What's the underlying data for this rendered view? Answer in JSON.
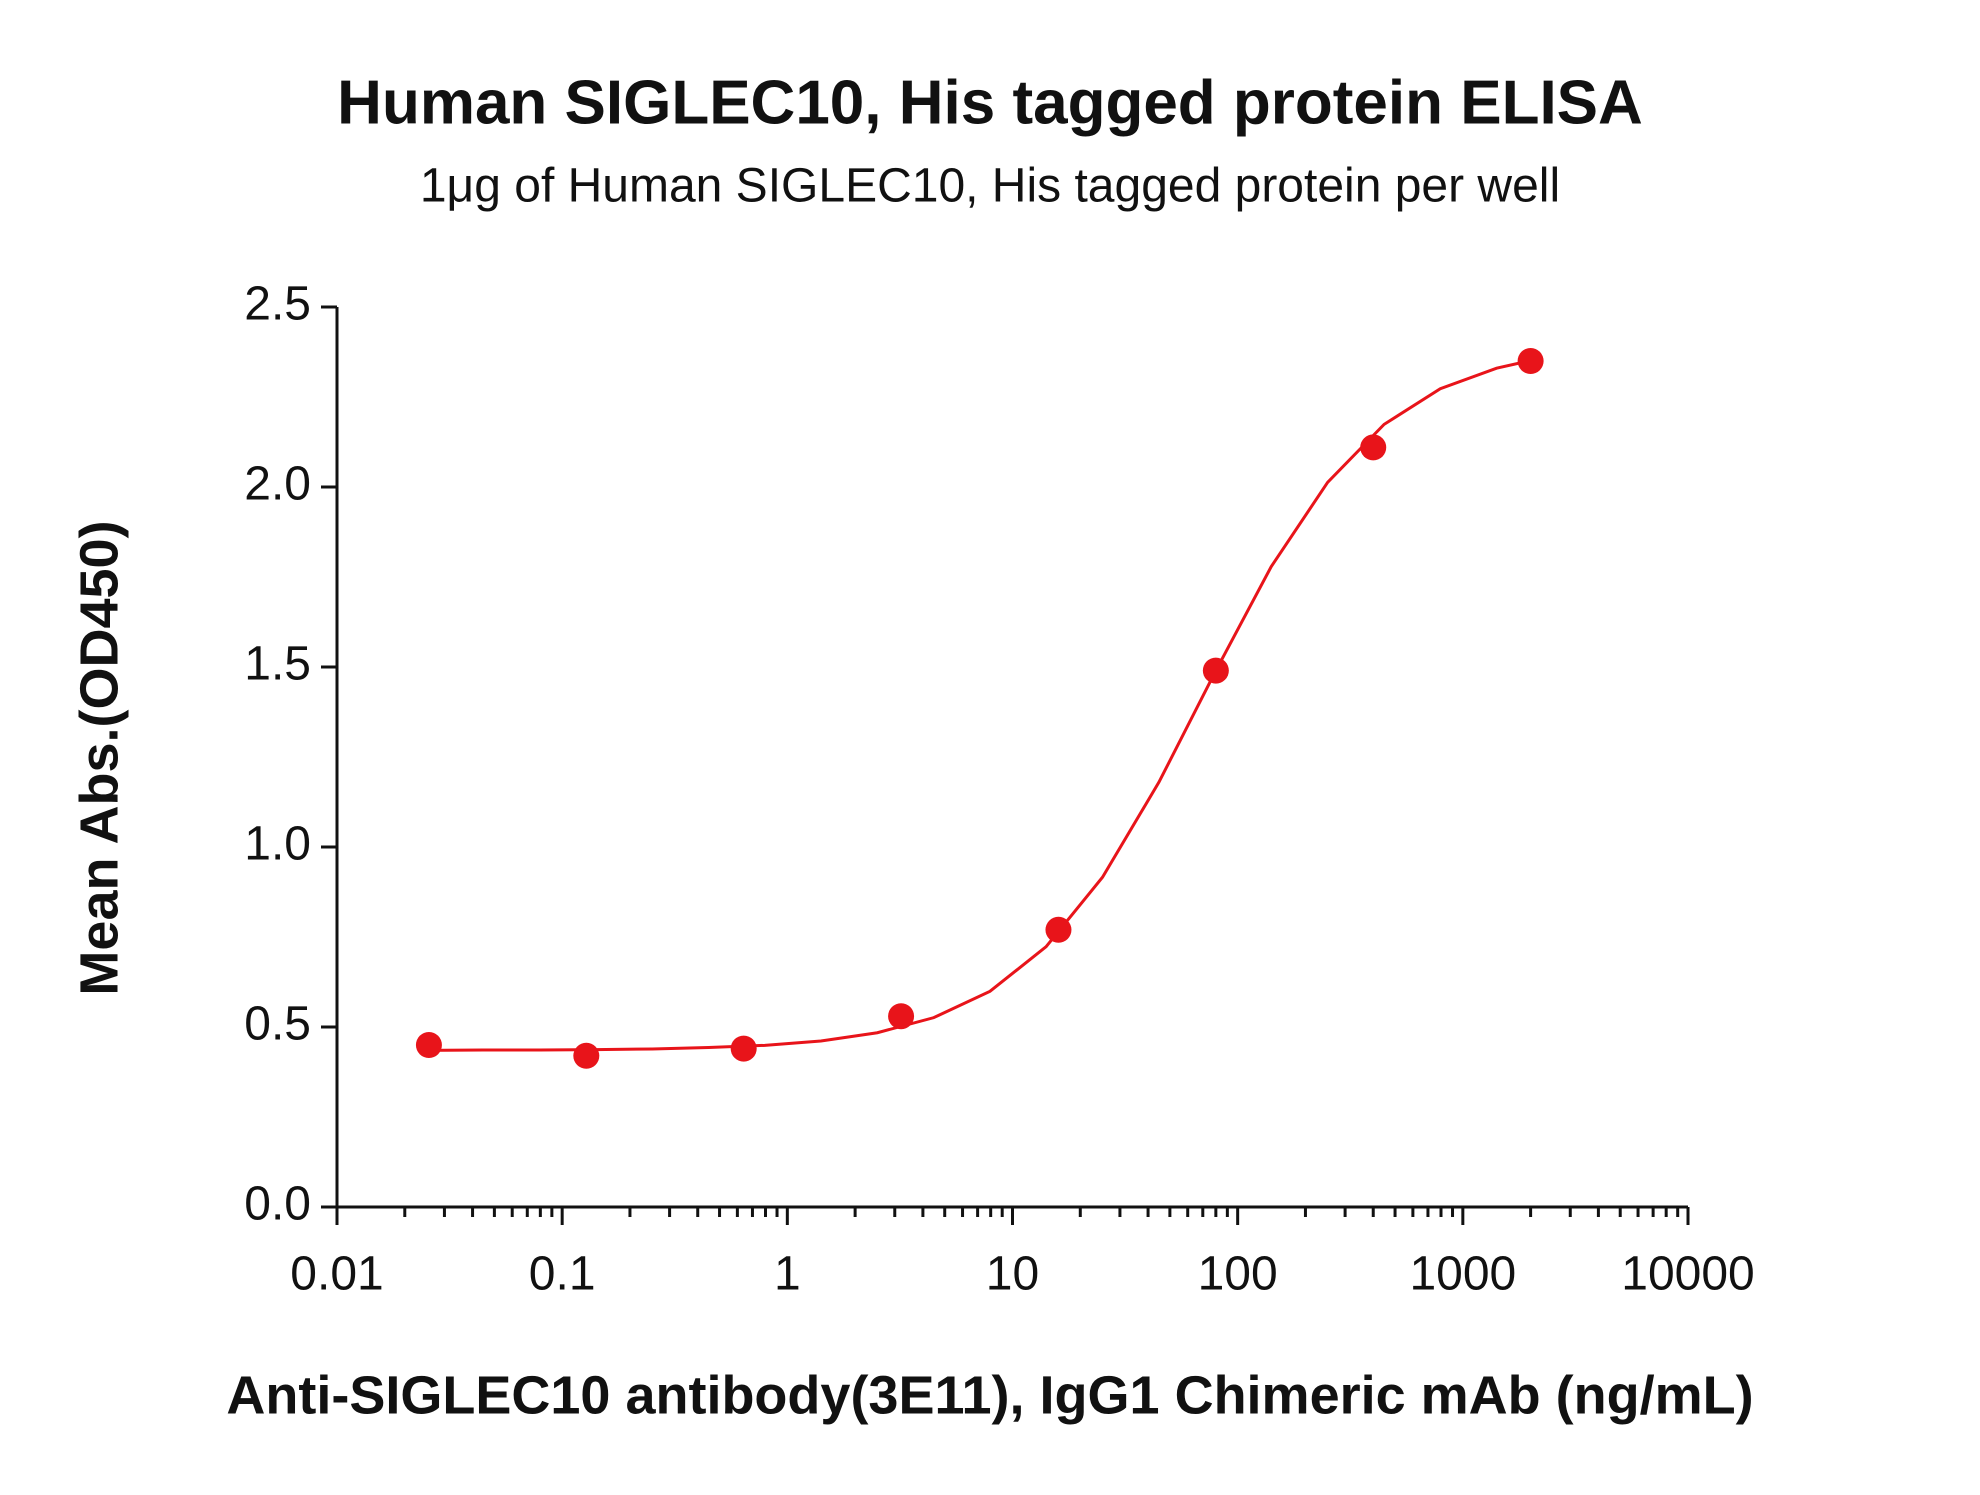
{
  "chart_data": {
    "type": "scatter",
    "title": "Human SIGLEC10, His tagged protein ELISA",
    "subtitle": "1μg of Human SIGLEC10,  His tagged protein per well",
    "x_label": "Anti-SIGLEC10 antibody(3E11), IgG1 Chimeric mAb (ng/mL)",
    "y_label": "Mean Abs.(OD450)",
    "x_scale": "log",
    "xlim": [
      0.01,
      10000
    ],
    "xticks": [
      0.01,
      0.1,
      1,
      10,
      100,
      1000,
      10000
    ],
    "ylim": [
      0,
      2.5
    ],
    "yticks": [
      {
        "value": 0,
        "label": "0.0"
      },
      0.5,
      {
        "value": 1,
        "label": "1.0"
      },
      1.5,
      {
        "value": 2,
        "label": "2.0"
      },
      2.5
    ],
    "series": [
      {
        "style": "points",
        "color": "#e8141a",
        "x": [
          0.0256,
          0.128,
          0.64,
          3.2,
          16,
          80,
          400,
          2000
        ],
        "values": [
          0.45,
          0.42,
          0.44,
          0.53,
          0.77,
          1.49,
          2.11,
          2.35
        ]
      },
      {
        "style": "line",
        "color": "#e8141a",
        "x": [
          0.0251,
          0.0447,
          0.0794,
          0.141,
          0.251,
          0.447,
          0.794,
          1.41,
          2.51,
          4.47,
          7.94,
          14.1,
          25.1,
          44.7,
          79.4,
          141,
          251,
          447,
          794,
          1413,
          1995
        ],
        "values": [
          0.435,
          0.436,
          0.436,
          0.437,
          0.439,
          0.443,
          0.449,
          0.461,
          0.484,
          0.526,
          0.599,
          0.723,
          0.916,
          1.18,
          1.486,
          1.779,
          2.013,
          2.174,
          2.273,
          2.33,
          2.351
        ]
      }
    ]
  }
}
